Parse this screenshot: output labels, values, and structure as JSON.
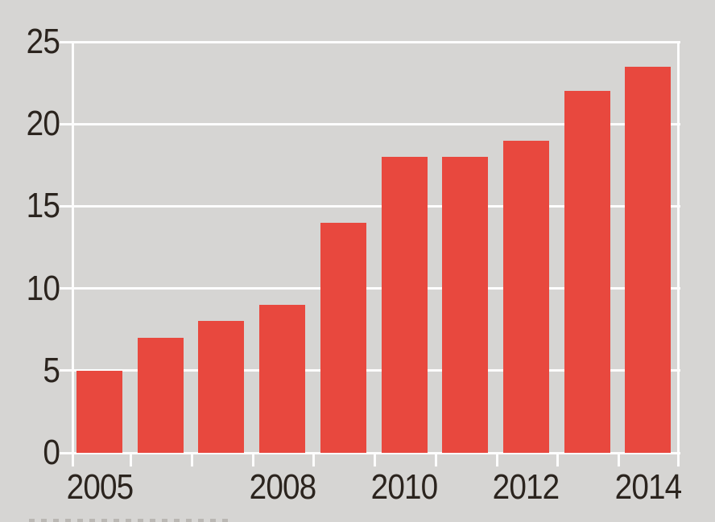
{
  "colors": {
    "background": "#D6D5D3",
    "bar": "#E8483E",
    "gridline": "#FDFDFD",
    "text": "#2B241E"
  },
  "chart_data": {
    "type": "bar",
    "title": "",
    "xlabel": "",
    "ylabel": "",
    "categories": [
      "2005",
      "2006",
      "2007",
      "2008",
      "2009",
      "2010",
      "2011",
      "2012",
      "2013",
      "2014"
    ],
    "values": [
      5,
      7,
      8,
      9,
      14,
      18,
      18,
      19,
      22,
      23.5
    ],
    "ylim": [
      0,
      25
    ],
    "y_ticks": [
      0,
      5,
      10,
      15,
      20,
      25
    ],
    "x_tick_labels": [
      {
        "category": "2005",
        "index": 0
      },
      {
        "category": "2008",
        "index": 3
      },
      {
        "category": "2010",
        "index": 5
      },
      {
        "category": "2012",
        "index": 7
      },
      {
        "category": "2014",
        "index": 9
      }
    ],
    "grid": true,
    "legend": false,
    "bar_color": "#E8483E",
    "background": "#D6D5D3"
  }
}
